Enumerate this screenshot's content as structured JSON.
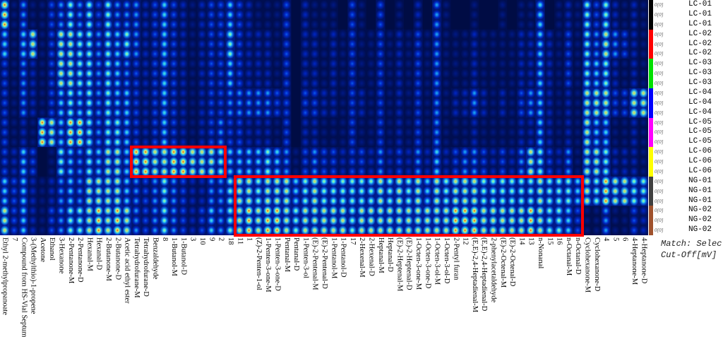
{
  "chart_data": {
    "type": "heatmap",
    "title": "GC-IMS gallery plot",
    "columns": [
      "Ethyl 2-methylpropanoate",
      "7",
      "Compound from HS-Vial Septum",
      "3-(Methylthio)-1-propene",
      "Acetone",
      "Ethanol",
      "3-Hexanone",
      "2-Pentanone-M",
      "2-Pentanone-D",
      "Hexanal-M",
      "Hexanal-D",
      "2-Butanone-M",
      "2-Butanone-D",
      "Acetic acid ethyl ester",
      "Tetrahydrofurane-M",
      "Tetrahydrofurane-D",
      "Benzaldehyde",
      "8",
      "1-Butanol-M",
      "1-Butanol-D",
      "3",
      "10",
      "9",
      "2",
      "18",
      "11",
      "1",
      "(Z)-2-Penten-1-ol",
      "1-Penten-3-one-M",
      "1-Penten-3-one-D",
      "Pentanal-M",
      "Pentanal-D",
      "1-Penten-3-ol",
      "(E)-2-Pentenal-M",
      "(E)-2-Pentenal-D",
      "1-Pentanol-M",
      "1-Pentanol-D",
      "17",
      "2-Hexenal-M",
      "2-Hexenal-D",
      "Heptanal-M",
      "Heptanal-D",
      "(E)-2-Heptenal-M",
      "(E)-2-Heptenal-D",
      "1-Octen-3-one-M",
      "1-Octen-3-one-D",
      "1-Octen-3-ol-M",
      "1-Octen-3-ol-D",
      "2-Pentyl furan",
      "12",
      "(E,E)-2,4-Heptadienal-M",
      "(E,E)-2,4-Heptadienal-D",
      "2-phenylacetaldehyde",
      "(E)-2-Octenal-M",
      "(E)-2-Octenal-D",
      "14",
      "13",
      "n-Nonanal",
      "15",
      "16",
      "n-Octanal-M",
      "n-Octanal-D",
      "Cyclohexanone-M",
      "Cyclohexanone-D",
      "4",
      "5",
      "6",
      "4-Heptanone-M",
      "4-Heptanone-D"
    ],
    "groups": [
      {
        "name": "LC-01",
        "color": "#000000",
        "replicates": 3
      },
      {
        "name": "LC-02",
        "color": "#ff0000",
        "replicates": 3
      },
      {
        "name": "LC-03",
        "color": "#00e000",
        "replicates": 3
      },
      {
        "name": "LC-04",
        "color": "#0000ff",
        "replicates": 3
      },
      {
        "name": "LC-05",
        "color": "#ff00ff",
        "replicates": 3
      },
      {
        "name": "LC-06",
        "color": "#ffff00",
        "replicates": 3
      },
      {
        "name": "NG-01",
        "color": "#404040",
        "replicates": 3
      },
      {
        "name": "NG-02",
        "color": "#a0522d",
        "replicates": 3
      }
    ],
    "rows": [
      "LC-01",
      "LC-01",
      "LC-01",
      "LC-02",
      "LC-02",
      "LC-02",
      "LC-03",
      "LC-03",
      "LC-03",
      "LC-04",
      "LC-04",
      "LC-04",
      "LC-05",
      "LC-05",
      "LC-05",
      "LC-06",
      "LC-06",
      "LC-06",
      "NG-01",
      "NG-01",
      "NG-01",
      "NG-02",
      "NG-02",
      "NG-02"
    ],
    "row_value_label": "0[0]",
    "intensity_scale": [
      0,
      9
    ],
    "intensity_by_group": [
      "85333357",
      "11111233",
      "45442555",
      "17221322",
      "11118011",
      "33337123",
      "47755644",
      "67768556",
      "46658446",
      "66666677",
      "34444578",
      "66666777",
      "45556778",
      "46455557",
      "44333844",
      "22222833",
      "33333744",
      "55555766",
      "33333844",
      "22222833",
      "11111722",
      "22222723",
      "33333745",
      "33334644",
      "56543566",
      "33343577",
      "22242578",
      "12242567",
      "12242678",
      "11131578",
      "33333477",
      "00000156",
      "22232367",
      "12232477",
      "11121367",
      "12221367",
      "01111267",
      "33333366",
      "11121367",
      "01111267",
      "33333477",
      "01111267",
      "12222377",
      "01111267",
      "23333477",
      "01111257",
      "44444577",
      "11111267",
      "01121378",
      "01121478",
      "12242478",
      "01121367",
      "01111267",
      "11121367",
      "01111267",
      "12232467",
      "12242768",
      "55555677",
      "02222366",
      "11111266",
      "23322465",
      "11111153",
      "66677771",
      "34575761",
      "67675684",
      "24231271",
      "13131271",
      "22272263",
      "11171162"
    ],
    "highlights": [
      {
        "columns": [
          "Tetrahydrofurane-M",
          "2"
        ],
        "rows": [
          "LC-06"
        ],
        "color": "#ff0000"
      },
      {
        "columns": [
          "11",
          "n-Octanal-D"
        ],
        "rows": [
          "NG-01",
          "NG-02"
        ],
        "color": "#ff0000"
      }
    ],
    "footnote": [
      "Match: Selec",
      "Cut-Off[mV]"
    ]
  }
}
